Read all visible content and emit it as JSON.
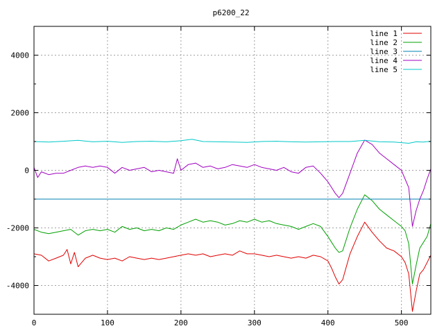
{
  "chart_data": {
    "type": "line",
    "title": "p6200_22",
    "xlabel": "",
    "ylabel": "",
    "xlim": [
      0,
      540
    ],
    "ylim": [
      -5000,
      5000
    ],
    "x_ticks": [
      0,
      100,
      200,
      300,
      400,
      500
    ],
    "y_ticks": [
      -4000,
      -2000,
      0,
      2000,
      4000
    ],
    "grid": true,
    "legend_position": "top-right",
    "series": [
      {
        "name": "line 1",
        "color": "#e00000",
        "x": [
          0,
          10,
          20,
          30,
          40,
          45,
          50,
          55,
          60,
          70,
          80,
          90,
          100,
          110,
          120,
          130,
          140,
          150,
          160,
          170,
          180,
          190,
          200,
          210,
          220,
          230,
          240,
          250,
          260,
          270,
          280,
          290,
          300,
          310,
          320,
          330,
          340,
          350,
          360,
          370,
          380,
          390,
          400,
          405,
          410,
          415,
          420,
          430,
          440,
          450,
          460,
          470,
          480,
          490,
          500,
          505,
          510,
          515,
          520,
          525,
          530,
          535,
          540
        ],
        "y": [
          -2900,
          -2950,
          -3150,
          -3050,
          -2950,
          -2750,
          -3250,
          -2850,
          -3350,
          -3050,
          -2950,
          -3050,
          -3100,
          -3050,
          -3150,
          -3000,
          -3050,
          -3100,
          -3050,
          -3100,
          -3050,
          -3000,
          -2950,
          -2900,
          -2950,
          -2900,
          -3000,
          -2950,
          -2900,
          -2950,
          -2800,
          -2900,
          -2900,
          -2950,
          -3000,
          -2950,
          -3000,
          -3050,
          -3000,
          -3050,
          -2950,
          -3000,
          -3150,
          -3400,
          -3700,
          -3950,
          -3800,
          -2900,
          -2300,
          -1800,
          -2150,
          -2450,
          -2700,
          -2800,
          -3000,
          -3200,
          -3600,
          -4900,
          -4200,
          -3600,
          -3450,
          -3200,
          -2950
        ]
      },
      {
        "name": "line 2",
        "color": "#00a000",
        "x": [
          0,
          10,
          20,
          30,
          40,
          50,
          60,
          70,
          80,
          90,
          100,
          110,
          120,
          130,
          140,
          150,
          160,
          170,
          180,
          190,
          200,
          210,
          220,
          230,
          240,
          250,
          260,
          270,
          280,
          290,
          300,
          310,
          320,
          330,
          340,
          350,
          360,
          370,
          380,
          390,
          400,
          405,
          410,
          415,
          420,
          430,
          440,
          450,
          460,
          470,
          480,
          490,
          500,
          505,
          510,
          515,
          520,
          525,
          530,
          535,
          540
        ],
        "y": [
          -2050,
          -2150,
          -2200,
          -2150,
          -2100,
          -2050,
          -2250,
          -2100,
          -2050,
          -2100,
          -2050,
          -2150,
          -1950,
          -2050,
          -2000,
          -2100,
          -2050,
          -2100,
          -2000,
          -2050,
          -1900,
          -1800,
          -1700,
          -1800,
          -1750,
          -1800,
          -1900,
          -1850,
          -1750,
          -1800,
          -1700,
          -1800,
          -1750,
          -1850,
          -1900,
          -1950,
          -2050,
          -1950,
          -1850,
          -1950,
          -2300,
          -2500,
          -2700,
          -2850,
          -2800,
          -2000,
          -1350,
          -850,
          -1050,
          -1350,
          -1550,
          -1750,
          -1950,
          -2100,
          -2550,
          -3950,
          -3300,
          -2700,
          -2500,
          -2300,
          -1850
        ]
      },
      {
        "name": "line 3",
        "color": "#0080b0",
        "x": [
          0,
          540
        ],
        "y": [
          -1000,
          -1000
        ]
      },
      {
        "name": "line 4",
        "color": "#a000c0",
        "x": [
          0,
          5,
          10,
          20,
          30,
          40,
          50,
          60,
          70,
          80,
          90,
          100,
          110,
          120,
          130,
          140,
          150,
          160,
          170,
          180,
          190,
          195,
          200,
          210,
          220,
          230,
          240,
          250,
          260,
          270,
          280,
          290,
          300,
          310,
          320,
          330,
          340,
          350,
          360,
          370,
          380,
          390,
          400,
          405,
          410,
          415,
          420,
          430,
          440,
          450,
          460,
          470,
          480,
          490,
          500,
          505,
          510,
          515,
          520,
          525,
          530,
          535,
          540
        ],
        "y": [
          100,
          -250,
          -50,
          -150,
          -100,
          -100,
          0,
          100,
          150,
          100,
          150,
          100,
          -100,
          100,
          0,
          50,
          100,
          -50,
          0,
          -50,
          -100,
          400,
          0,
          200,
          250,
          100,
          150,
          50,
          100,
          200,
          150,
          100,
          200,
          100,
          50,
          0,
          100,
          -50,
          -100,
          100,
          150,
          -100,
          -400,
          -600,
          -800,
          -950,
          -800,
          -100,
          600,
          1050,
          900,
          600,
          400,
          200,
          0,
          -300,
          -600,
          -1950,
          -1400,
          -1000,
          -700,
          -300,
          50
        ]
      },
      {
        "name": "line 5",
        "color": "#00c8c8",
        "x": [
          0,
          20,
          40,
          60,
          80,
          100,
          120,
          140,
          160,
          180,
          200,
          215,
          230,
          250,
          270,
          290,
          310,
          330,
          350,
          370,
          390,
          410,
          430,
          450,
          470,
          490,
          510,
          520,
          530,
          540
        ],
        "y": [
          1000,
          980,
          1010,
          1040,
          990,
          1010,
          970,
          1000,
          1010,
          990,
          1030,
          1080,
          1000,
          990,
          980,
          970,
          1000,
          1010,
          990,
          980,
          990,
          1000,
          1000,
          1040,
          990,
          980,
          940,
          990,
          980,
          1010
        ]
      }
    ]
  }
}
